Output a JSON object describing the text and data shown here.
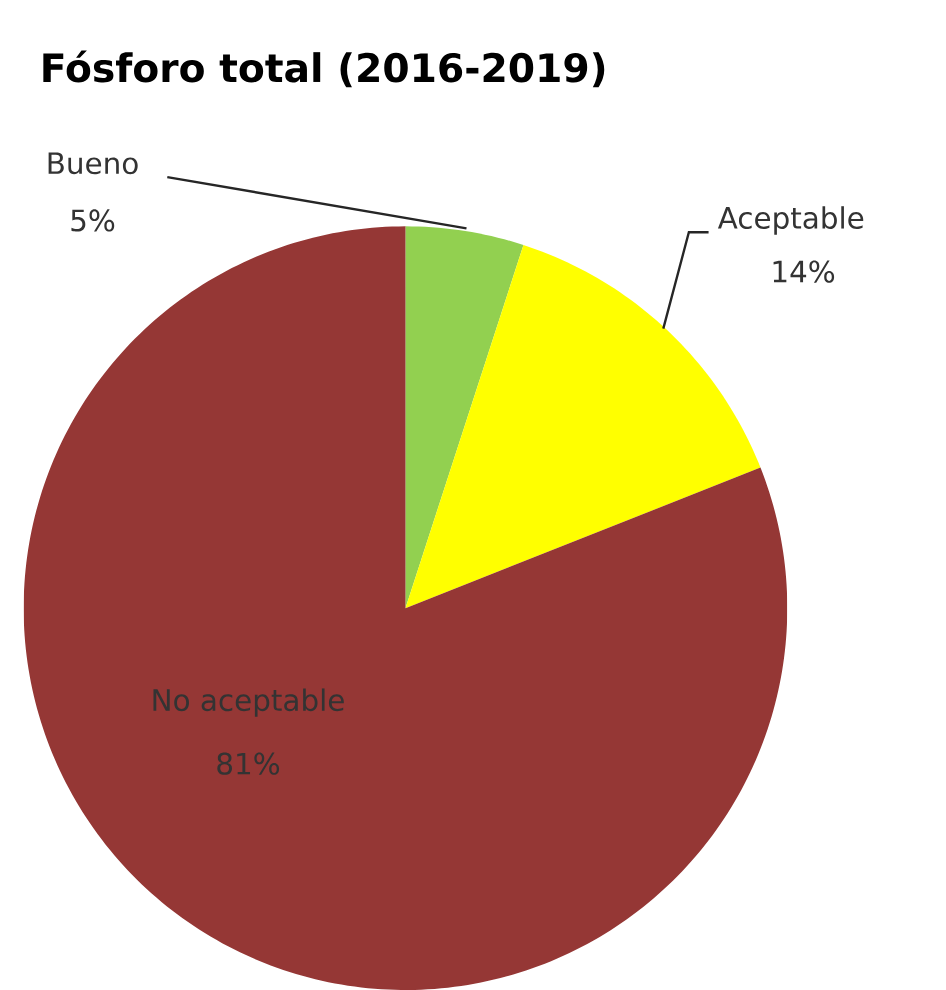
{
  "chart_data": {
    "type": "pie",
    "title": "Fósforo total (2016-2019)",
    "categories": [
      "Bueno",
      "Aceptable",
      "No aceptable"
    ],
    "values": [
      5,
      14,
      81
    ],
    "value_labels": [
      "5%",
      "14%",
      "81%"
    ],
    "colors": [
      "#92d050",
      "#ffff00",
      "#953735"
    ]
  }
}
